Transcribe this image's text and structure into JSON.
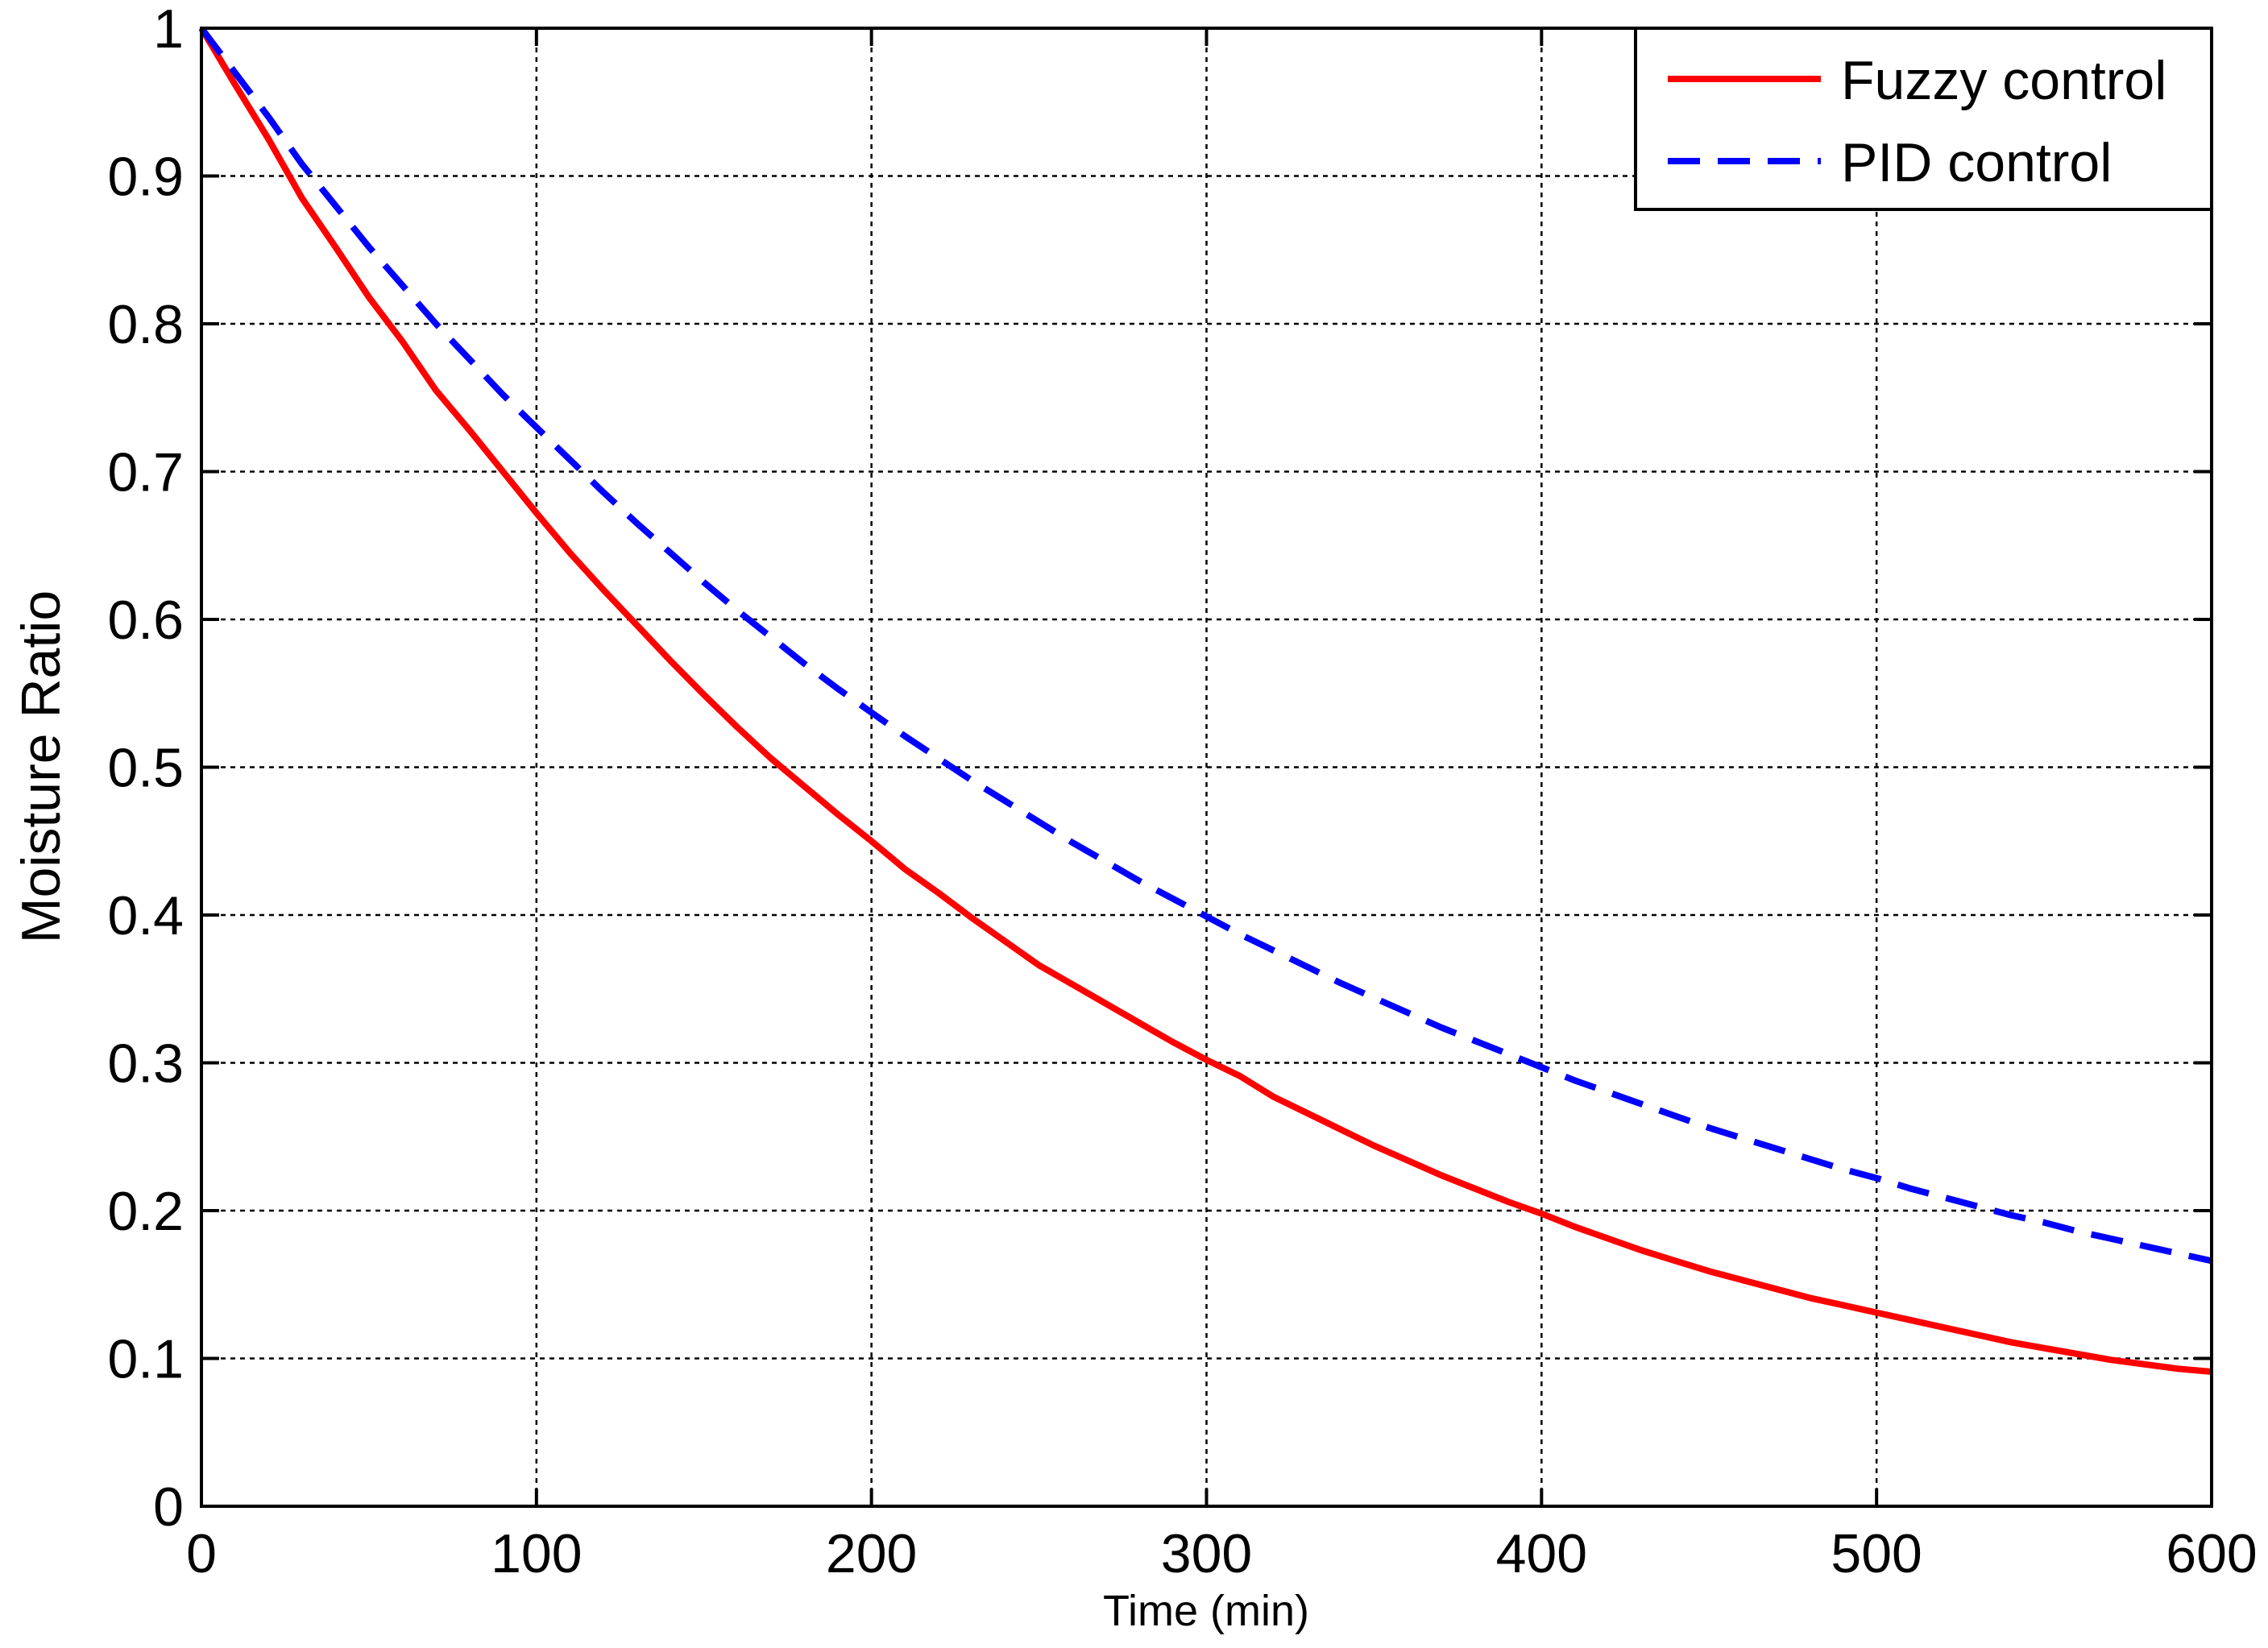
{
  "chart_data": {
    "type": "line",
    "title": "",
    "xlabel": "Time (min)",
    "ylabel": "Moisture Ratio",
    "xlim": [
      0,
      600
    ],
    "ylim": [
      0,
      1
    ],
    "xticks": [
      0,
      100,
      200,
      300,
      400,
      500,
      600
    ],
    "xtick_labels": [
      "0",
      "100",
      "200",
      "300",
      "400",
      "500",
      "600"
    ],
    "yticks": [
      0,
      0.1,
      0.2,
      0.3,
      0.4,
      0.5,
      0.6,
      0.7,
      0.8,
      0.9,
      1
    ],
    "ytick_labels": [
      "0",
      "0.1",
      "0.2",
      "0.3",
      "0.4",
      "0.5",
      "0.6",
      "0.7",
      "0.8",
      "0.9",
      "1"
    ],
    "grid": true,
    "legend_position": "top-right",
    "series": [
      {
        "name": "Fuzzy control",
        "color": "#ff0000",
        "style": "solid",
        "x": [
          0,
          10,
          20,
          30,
          40,
          50,
          60,
          70,
          80,
          90,
          100,
          110,
          120,
          130,
          140,
          150,
          160,
          170,
          180,
          190,
          200,
          210,
          220,
          230,
          240,
          250,
          260,
          270,
          280,
          290,
          300,
          310,
          320,
          330,
          340,
          350,
          360,
          370,
          380,
          390,
          400,
          410,
          420,
          430,
          440,
          450,
          460,
          470,
          480,
          490,
          500,
          510,
          520,
          530,
          540,
          550,
          560,
          570,
          580,
          590,
          600
        ],
        "y": [
          1.0,
          0.962,
          0.925,
          0.885,
          0.852,
          0.818,
          0.788,
          0.755,
          0.728,
          0.7,
          0.672,
          0.645,
          0.62,
          0.596,
          0.572,
          0.549,
          0.527,
          0.506,
          0.487,
          0.468,
          0.45,
          0.431,
          0.415,
          0.398,
          0.382,
          0.366,
          0.353,
          0.34,
          0.327,
          0.314,
          0.302,
          0.291,
          0.277,
          0.266,
          0.255,
          0.244,
          0.234,
          0.224,
          0.215,
          0.206,
          0.198,
          0.189,
          0.181,
          0.173,
          0.166,
          0.159,
          0.153,
          0.147,
          0.141,
          0.136,
          0.131,
          0.126,
          0.121,
          0.116,
          0.111,
          0.107,
          0.103,
          0.099,
          0.096,
          0.093,
          0.091
        ]
      },
      {
        "name": "PID control",
        "color": "#0000ff",
        "style": "dashed",
        "x": [
          0,
          10,
          20,
          30,
          40,
          50,
          60,
          70,
          80,
          90,
          100,
          110,
          120,
          130,
          140,
          150,
          160,
          170,
          180,
          190,
          200,
          210,
          220,
          230,
          240,
          250,
          260,
          270,
          280,
          290,
          300,
          310,
          320,
          330,
          340,
          350,
          360,
          370,
          380,
          390,
          400,
          410,
          420,
          430,
          440,
          450,
          460,
          470,
          480,
          490,
          500,
          510,
          520,
          530,
          540,
          550,
          560,
          570,
          580,
          590,
          600
        ],
        "y": [
          1.0,
          0.97,
          0.94,
          0.908,
          0.88,
          0.852,
          0.826,
          0.8,
          0.776,
          0.752,
          0.73,
          0.708,
          0.686,
          0.665,
          0.645,
          0.625,
          0.606,
          0.588,
          0.57,
          0.553,
          0.537,
          0.521,
          0.506,
          0.491,
          0.477,
          0.463,
          0.449,
          0.436,
          0.423,
          0.411,
          0.399,
          0.387,
          0.376,
          0.365,
          0.354,
          0.344,
          0.334,
          0.324,
          0.315,
          0.306,
          0.297,
          0.288,
          0.28,
          0.272,
          0.264,
          0.256,
          0.249,
          0.242,
          0.235,
          0.228,
          0.222,
          0.215,
          0.209,
          0.203,
          0.197,
          0.192,
          0.186,
          0.181,
          0.176,
          0.171,
          0.166
        ]
      }
    ]
  }
}
